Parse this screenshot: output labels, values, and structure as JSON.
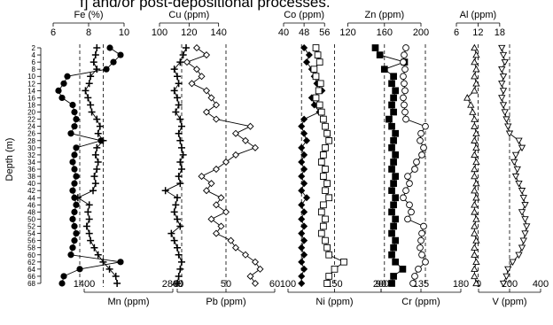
{
  "caption": "f] and/or post-depositional processes.",
  "depth_label": "Depth (m)",
  "depths": [
    2,
    4,
    6,
    8,
    10,
    12,
    14,
    16,
    18,
    20,
    22,
    24,
    26,
    28,
    30,
    32,
    34,
    36,
    38,
    40,
    42,
    44,
    46,
    48,
    50,
    52,
    54,
    56,
    58,
    60,
    62,
    64,
    66,
    68
  ],
  "chart_data": [
    {
      "type": "line",
      "position": "top",
      "series": [
        {
          "label": "Fe (%)",
          "xlim": [
            6,
            10
          ],
          "ticks": [
            6,
            8,
            10
          ],
          "ref": 7.5,
          "marker": "filled-circle",
          "values": [
            9.2,
            9.8,
            9.4,
            9.0,
            6.8,
            6.6,
            6.3,
            6.5,
            7.1,
            7.2,
            7.3,
            7.2,
            7.0,
            8.7,
            7.3,
            7.2,
            7.1,
            7.2,
            7.3,
            7.2,
            7.1,
            7.2,
            7.3,
            7.2,
            7.1,
            7.2,
            7.3,
            7.2,
            7.1,
            7.0,
            9.8,
            7.5,
            6.6,
            6.5
          ]
        },
        {
          "label": "Mn (ppm)",
          "xlim": [
            1400,
            2800
          ],
          "ticks": [
            1400,
            2800
          ],
          "ref": 1700,
          "marker": "plus",
          "values": [
            1600,
            1580,
            1550,
            1600,
            1500,
            1480,
            1420,
            1460,
            1500,
            1520,
            1600,
            1650,
            1620,
            1700,
            1600,
            1580,
            1620,
            1600,
            1560,
            1580,
            1540,
            1300,
            1480,
            1460,
            1480,
            1440,
            1480,
            1500,
            1560,
            1620,
            1700,
            1800,
            1900,
            1920
          ]
        },
        {
          "label": "Cu (ppm)",
          "xlim": [
            100,
            160
          ],
          "ticks": [
            100,
            120,
            140
          ],
          "ref": 115,
          "marker": "plus",
          "values": [
            118,
            116,
            114,
            110,
            112,
            113,
            110,
            112,
            113,
            111,
            114,
            115,
            113,
            114,
            115,
            116,
            114,
            115,
            113,
            114,
            104,
            112,
            111,
            110,
            112,
            114,
            108,
            110,
            112,
            113,
            115,
            114,
            113,
            112
          ]
        },
        {
          "label": "Pb (ppm)",
          "xlim": [
            40,
            60
          ],
          "ticks": [
            40,
            50,
            60
          ],
          "ref": 50,
          "marker": "open-diamond",
          "values": [
            44,
            46,
            42,
            44,
            45,
            43,
            46,
            47,
            48,
            46,
            48,
            55,
            52,
            54,
            56,
            52,
            50,
            48,
            45,
            47,
            46,
            49,
            48,
            50,
            47,
            49,
            48,
            51,
            52,
            54,
            56,
            57,
            55,
            56
          ]
        },
        {
          "label": "Co (ppm)",
          "xlim": [
            40,
            58
          ],
          "ticks": [
            40,
            48,
            56
          ],
          "ref": 47,
          "marker": "filled-diamond",
          "values": [
            48,
            50,
            49,
            51,
            52,
            53,
            55,
            51,
            52,
            54,
            48,
            47,
            48,
            49,
            47,
            48,
            47,
            48,
            47,
            48,
            47,
            49,
            47,
            48,
            47,
            48,
            47,
            48,
            47,
            48,
            47,
            48,
            47,
            47
          ]
        },
        {
          "label": "Ni (ppm)",
          "xlim": [
            100,
            200
          ],
          "ticks": [
            100,
            150,
            200
          ],
          "ref": 150,
          "marker": "open-square",
          "values": [
            130,
            132,
            134,
            128,
            130,
            135,
            133,
            130,
            134,
            136,
            138,
            140,
            142,
            144,
            140,
            138,
            136,
            140,
            138,
            142,
            140,
            144,
            138,
            136,
            140,
            138,
            136,
            140,
            142,
            144,
            160,
            150,
            144,
            142
          ]
        },
        {
          "label": "Zn (ppm)",
          "xlim": [
            100,
            200
          ],
          "ticks": [
            120,
            160,
            200
          ],
          "ref": 160,
          "marker": "filled-square",
          "values": [
            150,
            155,
            182,
            160,
            170,
            168,
            172,
            170,
            168,
            170,
            165,
            168,
            172,
            170,
            168,
            172,
            170,
            168,
            172,
            170,
            168,
            172,
            170,
            168,
            172,
            170,
            168,
            172,
            170,
            168,
            172,
            180,
            170,
            168
          ]
        },
        {
          "label": "Cr (ppm)",
          "xlim": [
            90,
            180
          ],
          "ticks": [
            90,
            135,
            180
          ],
          "ref": 140,
          "marker": "open-circle",
          "values": [
            118,
            116,
            115,
            117,
            115,
            116,
            117,
            115,
            116,
            117,
            118,
            140,
            135,
            134,
            138,
            136,
            130,
            128,
            120,
            122,
            118,
            115,
            122,
            124,
            120,
            138,
            136,
            135,
            134,
            136,
            140,
            132,
            128,
            126
          ]
        },
        {
          "label": "Al (ppm)",
          "xlim": [
            6,
            20
          ],
          "ticks": [
            6,
            12,
            18
          ],
          "ref": 12,
          "marker": "open-triangle-up",
          "values": [
            11,
            11.5,
            11,
            11.5,
            11,
            11.5,
            11,
            9,
            10,
            10.5,
            11,
            11,
            11.5,
            11,
            11.5,
            11,
            11.5,
            11,
            11,
            11.5,
            11,
            11.5,
            11,
            11,
            11.5,
            11,
            11,
            11.5,
            11,
            11,
            11.5,
            11,
            11,
            11.5
          ]
        },
        {
          "label": "V (ppm)",
          "xlim": [
            0,
            400
          ],
          "ticks": [
            0,
            200,
            400
          ],
          "ref": 200,
          "marker": "open-triangle-down",
          "values": [
            150,
            160,
            170,
            150,
            160,
            150,
            160,
            150,
            160,
            170,
            180,
            190,
            200,
            260,
            280,
            240,
            230,
            250,
            240,
            260,
            280,
            290,
            300,
            280,
            300,
            310,
            300,
            290,
            280,
            260,
            220,
            190,
            180,
            160
          ]
        }
      ]
    }
  ],
  "top_axis_labels": [
    "Fe (%)",
    "Cu (ppm)",
    "Co (ppm)",
    "Zn (ppm)",
    "Al (ppm)"
  ],
  "bottom_axis_labels": [
    "Mn (ppm)",
    "Pb (ppm)",
    "Ni (ppm)",
    "Cr (ppm)",
    "V (ppm)"
  ]
}
